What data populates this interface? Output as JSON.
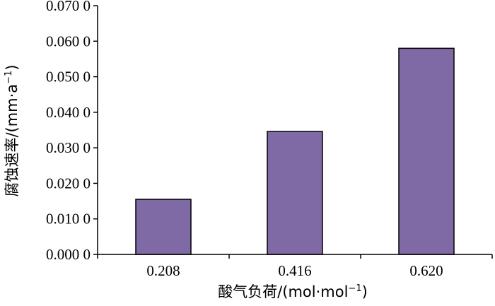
{
  "chart_data": {
    "type": "bar",
    "categories": [
      "0.208",
      "0.416",
      "0.620"
    ],
    "values": [
      0.0155,
      0.0346,
      0.058
    ],
    "ylim": [
      0,
      0.07
    ],
    "yticks": [
      0,
      0.01,
      0.02,
      0.03,
      0.04,
      0.05,
      0.06,
      0.07
    ],
    "ytick_labels": [
      "0.000 0",
      "0.010 0",
      "0.020 0",
      "0.030 0",
      "0.040 0",
      "0.050 0",
      "0.060 0",
      "0.070 0"
    ],
    "xlabel": {
      "text": "酸气负荷/(mol·mol",
      "sup": "−1",
      "tail": ")"
    },
    "ylabel": {
      "text": "腐蚀速率/(mm·a",
      "sup": "−1",
      "tail": ")"
    },
    "bar_color": "#7f6aa6",
    "bar_edge_color": "#000000",
    "grid": false,
    "legend": "none"
  }
}
